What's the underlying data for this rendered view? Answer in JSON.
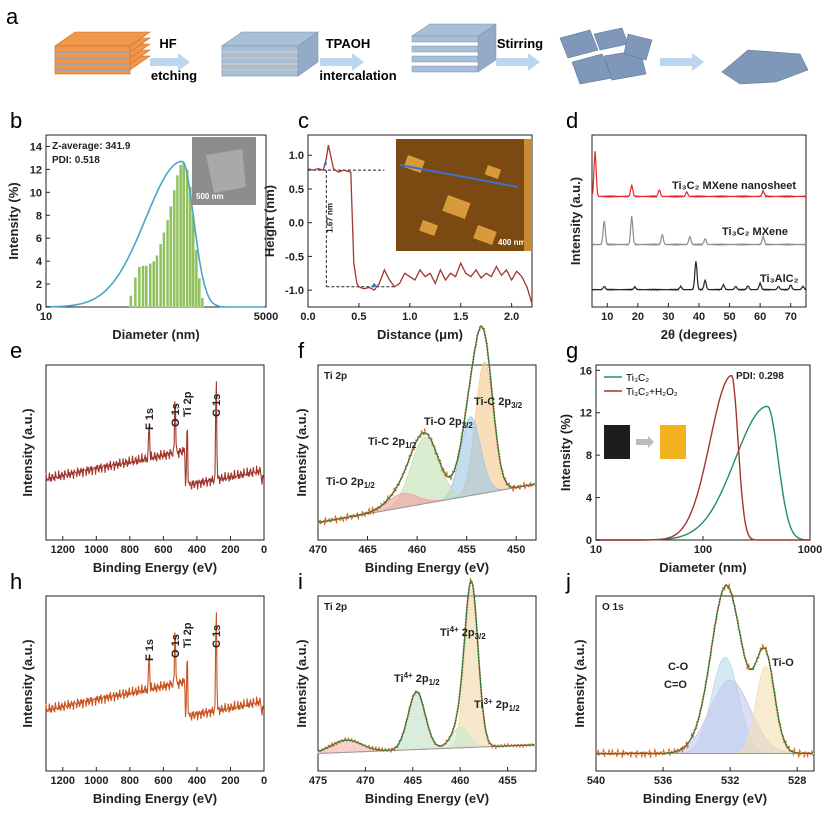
{
  "panel_labels": [
    "a",
    "b",
    "c",
    "d",
    "e",
    "f",
    "g",
    "h",
    "i",
    "j"
  ],
  "scheme": {
    "step1_top": "HF",
    "step1_bottom": "etching",
    "step2_top": "TPAOH",
    "step2_bottom": "intercalation",
    "step3_top": "Stirring",
    "colors": {
      "orange": "#f0974a",
      "blue": "#8aa6c8",
      "arrow": "#bcd6ef"
    }
  },
  "chart_data": [
    {
      "id": "b",
      "type": "bar",
      "xlabel": "Diameter (nm)",
      "ylabel": "Intensity (%)",
      "xscale": "log",
      "xlim": [
        10,
        5000
      ],
      "ylim": [
        0,
        15
      ],
      "xticks": [
        "10",
        "5000"
      ],
      "yticks": [
        0,
        2,
        4,
        6,
        8,
        10,
        12,
        14
      ],
      "annotations": [
        "Z-average: 341.9",
        "PDI: 0.518"
      ],
      "inset_scale": "500 nm",
      "bars_x": [
        110,
        125,
        140,
        155,
        170,
        190,
        210,
        230,
        255,
        280,
        310,
        340,
        375,
        410,
        450,
        490,
        540,
        590,
        640,
        700,
        760,
        830
      ],
      "bars_y": [
        1.0,
        2.6,
        3.5,
        3.6,
        3.6,
        3.8,
        4.0,
        4.5,
        5.5,
        6.5,
        7.6,
        8.8,
        10.2,
        11.5,
        12.4,
        12.6,
        12.0,
        10.5,
        8.0,
        5.0,
        2.5,
        0.8
      ],
      "fit_peak_x": 470,
      "fit_peak_y": 12.7,
      "colors": {
        "bar": "#8fc25c",
        "fit": "#4aa6c9"
      }
    },
    {
      "id": "c",
      "type": "line",
      "xlabel": "Distance (μm)",
      "ylabel": "Height (nm)",
      "xlim": [
        0,
        2.2
      ],
      "ylim": [
        -1.25,
        1.3
      ],
      "xticks": [
        0.0,
        0.5,
        1.0,
        1.5,
        2.0
      ],
      "yticks": [
        -1.0,
        -0.5,
        0.0,
        0.5,
        1.0
      ],
      "annotation": "1.67 nm",
      "inset_scale": "400 nm",
      "x": [
        0,
        0.05,
        0.1,
        0.15,
        0.18,
        0.2,
        0.25,
        0.3,
        0.35,
        0.42,
        0.45,
        0.48,
        0.5,
        0.55,
        0.6,
        0.65,
        0.7,
        0.75,
        0.8,
        0.85,
        0.9,
        0.95,
        1.0,
        1.05,
        1.1,
        1.15,
        1.2,
        1.25,
        1.3,
        1.35,
        1.4,
        1.45,
        1.5,
        1.55,
        1.6,
        1.65,
        1.7,
        1.75,
        1.8,
        1.85,
        1.9,
        1.95,
        2.0,
        2.05,
        2.1,
        2.15,
        2.2
      ],
      "y": [
        0.8,
        0.78,
        0.8,
        0.78,
        0.95,
        1.15,
        0.8,
        0.75,
        0.78,
        0.75,
        -0.6,
        -0.9,
        -0.95,
        -0.98,
        -0.96,
        -1.0,
        -0.9,
        -0.7,
        -0.85,
        -0.95,
        -0.9,
        -0.75,
        -0.8,
        -0.85,
        -0.7,
        -0.8,
        -0.75,
        -0.9,
        -0.7,
        -0.85,
        -0.75,
        -0.8,
        -0.6,
        -0.75,
        -0.8,
        -0.7,
        -0.82,
        -0.75,
        -0.8,
        -0.65,
        -0.78,
        -0.7,
        -0.85,
        -0.72,
        -0.8,
        -0.95,
        -1.2
      ],
      "colors": {
        "line": "#a0372e",
        "marker": "#3a74c9"
      }
    },
    {
      "id": "d",
      "type": "line",
      "xlabel": "2θ (degrees)",
      "ylabel": "Intensity (a.u.)",
      "xlim": [
        5,
        75
      ],
      "xticks": [
        10,
        20,
        30,
        40,
        50,
        60,
        70
      ],
      "series": [
        {
          "name": "Ti₃C₂ MXene nanosheet",
          "color": "#e8262b",
          "peaks": [
            [
              6,
              1.0
            ],
            [
              18,
              0.25
            ],
            [
              27,
              0.15
            ],
            [
              36,
              0.1
            ],
            [
              61,
              0.12
            ]
          ]
        },
        {
          "name": "Ti₃C₂ MXene",
          "color": "#8d8d8d",
          "peaks": [
            [
              9,
              0.6
            ],
            [
              18,
              0.7
            ],
            [
              28,
              0.25
            ],
            [
              37,
              0.2
            ],
            [
              42,
              0.15
            ],
            [
              61,
              0.2
            ]
          ]
        },
        {
          "name": "Ti₃AlC₂",
          "color": "#222222",
          "peaks": [
            [
              9,
              0.1
            ],
            [
              19,
              0.08
            ],
            [
              34,
              0.1
            ],
            [
              39,
              0.9
            ],
            [
              42,
              0.3
            ],
            [
              48,
              0.15
            ],
            [
              52,
              0.1
            ],
            [
              56,
              0.12
            ],
            [
              60,
              0.2
            ],
            [
              66,
              0.1
            ],
            [
              70,
              0.15
            ],
            [
              74,
              0.1
            ]
          ]
        }
      ]
    },
    {
      "id": "e",
      "type": "line",
      "xlabel": "Binding Energy (eV)",
      "ylabel": "Intensity (a.u.)",
      "xlim": [
        1300,
        0
      ],
      "xticks": [
        1200,
        1000,
        800,
        600,
        400,
        200,
        0
      ],
      "peak_labels": [
        "F 1s",
        "O 1s",
        "Ti 2p",
        "C 1s"
      ],
      "peak_positions": [
        685,
        530,
        458,
        285
      ],
      "color": "#a0372e"
    },
    {
      "id": "f",
      "type": "line",
      "panel_title": "Ti 2p",
      "xlabel": "Binding Energy (eV)",
      "ylabel": "Intensity (a.u.)",
      "xlim": [
        470,
        448
      ],
      "xticks": [
        470,
        465,
        460,
        455,
        450
      ],
      "components": [
        {
          "name": "Ti-C 2p3/2",
          "center": 453.2,
          "amp": 0.75,
          "width": 0.9,
          "color": "#f3c98a"
        },
        {
          "name": "Ti-O 2p3/2",
          "center": 454.6,
          "amp": 0.45,
          "width": 1.0,
          "color": "#9cc6e8"
        },
        {
          "name": "Ti-C 2p1/2",
          "center": 459.2,
          "amp": 0.38,
          "width": 1.4,
          "color": "#bfe0b0"
        },
        {
          "name": "Ti-O 2p1/2",
          "center": 461.5,
          "amp": 0.08,
          "width": 1.5,
          "color": "#f4a0a0"
        }
      ],
      "labels": {
        "ti_c_32": "Ti-C 2p",
        "ti_c_32_sub": "3/2",
        "ti_o_32": "Ti-O 2p",
        "ti_o_32_sub": "3/2",
        "ti_c_12": "Ti-C 2p",
        "ti_c_12_sub": "1/2",
        "ti_o_12": "Ti-O 2p",
        "ti_o_12_sub": "1/2"
      }
    },
    {
      "id": "g",
      "type": "line",
      "xlabel": "Diameter (nm)",
      "ylabel": "Intensity (%)",
      "xscale": "log",
      "xlim": [
        10,
        1000
      ],
      "ylim": [
        0,
        16.5
      ],
      "xticks": [
        "10",
        "100",
        "1000"
      ],
      "yticks": [
        0,
        4,
        8,
        12,
        16
      ],
      "annotation": "PDI: 0.298",
      "series": [
        {
          "name": "Ti₃C₂",
          "color": "#1f8f6a",
          "peak_x": 400,
          "peak_y": 12.6
        },
        {
          "name": "Ti₃C₂+H₂O₂",
          "color": "#a0372e",
          "peak_x": 185,
          "peak_y": 15.5
        }
      ]
    },
    {
      "id": "h",
      "type": "line",
      "xlabel": "Binding Energy (eV)",
      "ylabel": "Intensity (a.u.)",
      "xlim": [
        1300,
        0
      ],
      "xticks": [
        1200,
        1000,
        800,
        600,
        400,
        200,
        0
      ],
      "peak_labels": [
        "F 1s",
        "O 1s",
        "Ti 2p",
        "C 1s"
      ],
      "peak_positions": [
        685,
        530,
        458,
        285
      ],
      "color": "#c9541e"
    },
    {
      "id": "i",
      "type": "line",
      "panel_title": "Ti 2p",
      "xlabel": "Binding Energy (eV)",
      "ylabel": "Intensity (a.u.)",
      "xlim": [
        475,
        452
      ],
      "xticks": [
        475,
        470,
        465,
        460,
        455
      ],
      "components": [
        {
          "name": "Ti4+ 2p3/2",
          "center": 458.8,
          "amp": 0.9,
          "width": 0.7,
          "color": "#f3d9a8"
        },
        {
          "name": "Ti4+ 2p1/2",
          "center": 464.6,
          "amp": 0.33,
          "width": 0.9,
          "color": "#bfe0c8"
        },
        {
          "name": "Ti3+ 2p1/2",
          "center": 460.0,
          "amp": 0.12,
          "width": 0.9,
          "color": "#c8e8d0"
        },
        {
          "name": "sat",
          "center": 472.0,
          "amp": 0.07,
          "width": 1.6,
          "color": "#f4b0b0"
        }
      ],
      "labels": {
        "a": "Ti",
        "a_sup": "4+",
        "a_rest": " 2p",
        "a_sub": "3/2",
        "b": "Ti",
        "b_sup": "4+",
        "b_rest": " 2p",
        "b_sub": "1/2",
        "c": "Ti",
        "c_sup": "3+",
        "c_rest": " 2p",
        "c_sub": "1/2"
      }
    },
    {
      "id": "j",
      "type": "line",
      "panel_title": "O 1s",
      "xlabel": "Binding Energy (eV)",
      "ylabel": "Intensity (a.u.)",
      "xlim": [
        540,
        527
      ],
      "xticks": [
        540,
        536,
        532,
        528
      ],
      "components": [
        {
          "name": "C-O",
          "center": 532.3,
          "amp": 0.55,
          "width": 0.8,
          "color": "#b7dbe8"
        },
        {
          "name": "C=O",
          "center": 532.0,
          "amp": 0.42,
          "width": 1.2,
          "color": "#c6c8ee"
        },
        {
          "name": "Ti-O",
          "center": 529.9,
          "amp": 0.5,
          "width": 0.55,
          "color": "#f3ddb0"
        }
      ],
      "labels": {
        "co": "C-O",
        "c2o": "C=O",
        "tio": "Ti-O"
      }
    }
  ]
}
